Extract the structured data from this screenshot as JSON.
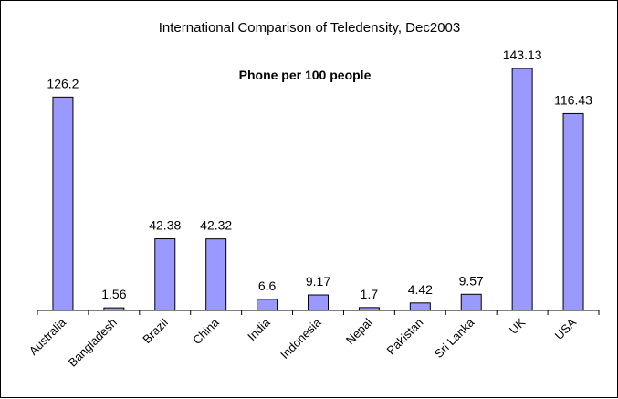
{
  "chart_data": {
    "type": "bar",
    "title": "International Comparison of Teledensity, Dec2003",
    "subtitle": "Phone per 100 people",
    "xlabel": "",
    "ylabel": "",
    "categories": [
      "Australia",
      "Bangladesh",
      "Brazil",
      "China",
      "India",
      "Indonesia",
      "Nepal",
      "Pakistan",
      "Sri Lanka",
      "UK",
      "USA"
    ],
    "values": [
      126.2,
      1.56,
      42.38,
      42.32,
      6.6,
      9.17,
      1.7,
      4.42,
      9.57,
      143.13,
      116.43
    ],
    "value_labels": [
      "126.2",
      "1.56",
      "42.38",
      "42.32",
      "6.6",
      "9.17",
      "1.7",
      "4.42",
      "9.57",
      "143.13",
      "116.43"
    ],
    "ylim": [
      0,
      143.13
    ],
    "grid": false,
    "legend": "none",
    "colors": {
      "bar_fill": "#9999ff",
      "bar_stroke": "#000000",
      "axis": "#000000",
      "background": "#ffffff"
    }
  }
}
